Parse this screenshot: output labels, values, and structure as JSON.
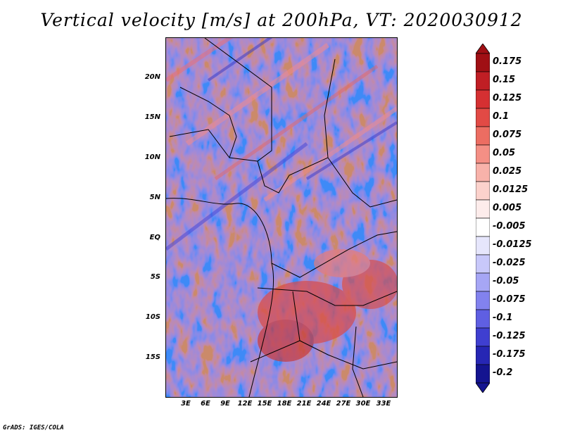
{
  "figure": {
    "title": "Vertical velocity [m/s] at 200hPa, VT: 2020030912",
    "credit": "GrADS: IGES/COLA"
  },
  "map": {
    "lat_labels": [
      "20N",
      "15N",
      "10N",
      "5N",
      "EQ",
      "5S",
      "10S",
      "15S"
    ],
    "lon_labels": [
      "3E",
      "6E",
      "9E",
      "12E",
      "15E",
      "18E",
      "21E",
      "24E",
      "27E",
      "30E",
      "33E"
    ],
    "variable": "Vertical velocity",
    "units": "m/s",
    "level": "200hPa",
    "valid_time": "2020030912"
  },
  "colorbar": {
    "labels": [
      "0.175",
      "0.15",
      "0.125",
      "0.1",
      "0.075",
      "0.05",
      "0.025",
      "0.0125",
      "0.005",
      "-0.005",
      "-0.0125",
      "-0.025",
      "-0.05",
      "-0.075",
      "-0.1",
      "-0.125",
      "-0.175",
      "-0.2"
    ],
    "colors": [
      "#a00f14",
      "#c01e24",
      "#d53032",
      "#e24a45",
      "#ec6d62",
      "#f48f85",
      "#f8b2aa",
      "#fcd2cc",
      "#fdeceb",
      "#ffffff",
      "#e6e6fc",
      "#c8c8fa",
      "#a6a6f5",
      "#8282ee",
      "#5f5fe2",
      "#3f3fd0",
      "#2626b4",
      "#141490"
    ]
  }
}
